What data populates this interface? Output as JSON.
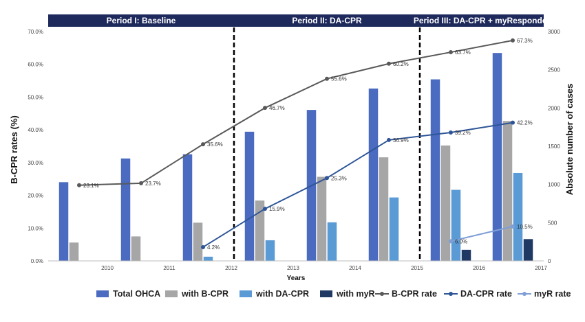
{
  "chart_data": {
    "type": "bar",
    "categories": [
      "2010",
      "2011",
      "2012",
      "2013",
      "2014",
      "2015",
      "2016",
      "2017"
    ],
    "xlabel": "Years",
    "ylabel_left": "B-CPR rates (%)",
    "ylabel_right": "Absolute number of cases",
    "ylim_left": [
      0,
      70
    ],
    "ylim_right": [
      0,
      3000
    ],
    "left_ticks": [
      "0.0%",
      "10.0%",
      "20.0%",
      "30.0%",
      "40.0%",
      "50.0%",
      "60.0%",
      "70.0%"
    ],
    "right_ticks": [
      "0",
      "500",
      "1000",
      "1500",
      "2000",
      "2500",
      "3000"
    ],
    "periods": [
      {
        "label": "Period I: Baseline",
        "start": "2010",
        "end": "2012"
      },
      {
        "label": "Period II: DA-CPR",
        "start": "2012",
        "end": "2015"
      },
      {
        "label": "Period III: DA-CPR + myResponder",
        "start": "2015",
        "end": "2017"
      }
    ],
    "bar_series": [
      {
        "name": "Total OHCA",
        "color": "#4a6bc0",
        "values": [
          1030,
          1340,
          1395,
          1690,
          1975,
          2255,
          2375,
          2720
        ]
      },
      {
        "name": "with B-CPR",
        "color": "#a6a6a6",
        "values": [
          240,
          320,
          500,
          790,
          1100,
          1355,
          1510,
          1830
        ]
      },
      {
        "name": "with DA-CPR",
        "color": "#5b9bd5",
        "values": [
          null,
          null,
          55,
          270,
          505,
          830,
          930,
          1150
        ]
      },
      {
        "name": "with myR",
        "color": "#203864",
        "values": [
          null,
          null,
          null,
          null,
          null,
          null,
          145,
          285
        ]
      }
    ],
    "line_series": [
      {
        "name": "B-CPR rate",
        "color": "#595959",
        "values": [
          23.1,
          23.7,
          35.6,
          46.7,
          55.6,
          60.2,
          63.7,
          67.3
        ],
        "labels": [
          "23.1%",
          "23.7%",
          "35.6%",
          "46.7%",
          "55.6%",
          "60.2%",
          "63.7%",
          "67.3%"
        ]
      },
      {
        "name": "DA-CPR rate",
        "color": "#2e5597",
        "values": [
          null,
          null,
          4.2,
          15.9,
          25.3,
          36.9,
          39.2,
          42.2
        ],
        "labels": [
          "",
          "",
          "4.2%",
          "15.9%",
          "25.3%",
          "36.9%",
          "39.2%",
          "42.2%"
        ]
      },
      {
        "name": "myR rate",
        "color": "#7f9fd6",
        "values": [
          null,
          null,
          null,
          null,
          null,
          null,
          6.0,
          10.5
        ],
        "labels": [
          "",
          "",
          "",
          "",
          "",
          "",
          "6.0%",
          "10.5%"
        ]
      }
    ],
    "legend_position": "bottom"
  }
}
